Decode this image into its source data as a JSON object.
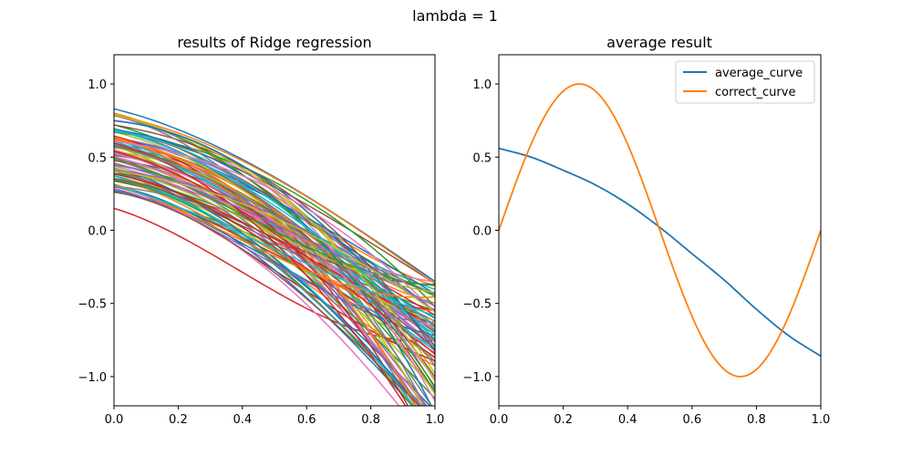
{
  "figure": {
    "suptitle": "lambda = 1"
  },
  "colors": {
    "tab10": [
      "#1f77b4",
      "#ff7f0e",
      "#2ca02c",
      "#d62728",
      "#9467bd",
      "#8c564b",
      "#e377c2",
      "#7f7f7f",
      "#bcbd22",
      "#17becf"
    ]
  },
  "chart_data": [
    {
      "type": "line",
      "title": "results of Ridge regression",
      "xlabel": "",
      "ylabel": "",
      "xlim": [
        0.0,
        1.0
      ],
      "ylim": [
        -1.2,
        1.2
      ],
      "xticks": [
        0.0,
        0.2,
        0.4,
        0.6,
        0.8,
        1.0
      ],
      "xtick_labels": [
        "0.0",
        "0.2",
        "0.4",
        "0.6",
        "0.8",
        "1.0"
      ],
      "yticks": [
        -1.0,
        -0.5,
        0.0,
        0.5,
        1.0
      ],
      "ytick_labels": [
        "−1.0",
        "−0.5",
        "0.0",
        "0.5",
        "1.0"
      ],
      "grid": false,
      "legend": "none",
      "series_count": 100,
      "series_description": "100 cubic-like fitted curves starting between ~0.15 and ~0.83 at x=0 and decreasing to between about -1.5 and -0.35 at x=1",
      "representative_series": [
        {
          "y_at_0": 0.83,
          "y_at_1": -0.35
        },
        {
          "y_at_0": 0.8,
          "y_at_1": -0.38
        },
        {
          "y_at_0": 0.72,
          "y_at_1": -0.45
        },
        {
          "y_at_0": 0.68,
          "y_at_1": -0.55
        },
        {
          "y_at_0": 0.62,
          "y_at_1": -0.62
        },
        {
          "y_at_0": 0.58,
          "y_at_1": -0.7
        },
        {
          "y_at_0": 0.55,
          "y_at_1": -0.8
        },
        {
          "y_at_0": 0.5,
          "y_at_1": -0.9
        },
        {
          "y_at_0": 0.45,
          "y_at_1": -1.1
        },
        {
          "y_at_0": 0.42,
          "y_at_1": -1.3
        },
        {
          "y_at_0": 0.35,
          "y_at_1": -0.6
        },
        {
          "y_at_0": 0.3,
          "y_at_1": -0.66
        },
        {
          "y_at_0": 0.26,
          "y_at_1": -0.55
        },
        {
          "y_at_0": 0.15,
          "y_at_1": -0.75
        }
      ]
    },
    {
      "type": "line",
      "title": "average result",
      "xlabel": "",
      "ylabel": "",
      "xlim": [
        0.0,
        1.0
      ],
      "ylim": [
        -1.2,
        1.2
      ],
      "xticks": [
        0.0,
        0.2,
        0.4,
        0.6,
        0.8,
        1.0
      ],
      "xtick_labels": [
        "0.0",
        "0.2",
        "0.4",
        "0.6",
        "0.8",
        "1.0"
      ],
      "yticks": [
        -1.0,
        -0.5,
        0.0,
        0.5,
        1.0
      ],
      "ytick_labels": [
        "−1.0",
        "−0.5",
        "0.0",
        "0.5",
        "1.0"
      ],
      "grid": false,
      "legend": "top-right",
      "series": [
        {
          "name": "average_curve",
          "color": "#1f77b4",
          "x": [
            0.0,
            0.1,
            0.2,
            0.3,
            0.4,
            0.5,
            0.6,
            0.7,
            0.8,
            0.9,
            1.0
          ],
          "y": [
            0.56,
            0.5,
            0.41,
            0.31,
            0.18,
            0.02,
            -0.16,
            -0.34,
            -0.54,
            -0.72,
            -0.86
          ]
        },
        {
          "name": "correct_curve",
          "color": "#ff7f0e",
          "function": "sin(2*pi*x)",
          "x": [
            0.0,
            0.125,
            0.25,
            0.375,
            0.5,
            0.625,
            0.75,
            0.875,
            1.0
          ],
          "y": [
            0.0,
            0.707,
            1.0,
            0.707,
            0.0,
            -0.707,
            -1.0,
            -0.707,
            0.0
          ]
        }
      ]
    }
  ]
}
